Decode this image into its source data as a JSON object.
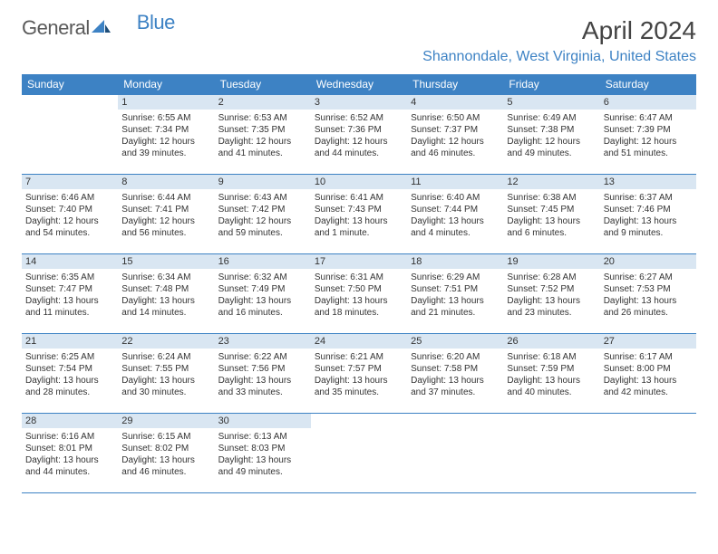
{
  "logo": {
    "general": "General",
    "blue": "Blue"
  },
  "title": "April 2024",
  "location": "Shannondale, West Virginia, United States",
  "colors": {
    "accent": "#3d82c4",
    "day_num_bg": "#d9e6f2",
    "text": "#333333",
    "logo_gray": "#5a5a5a"
  },
  "day_headers": [
    "Sunday",
    "Monday",
    "Tuesday",
    "Wednesday",
    "Thursday",
    "Friday",
    "Saturday"
  ],
  "weeks": [
    [
      null,
      {
        "n": "1",
        "sr": "Sunrise: 6:55 AM",
        "ss": "Sunset: 7:34 PM",
        "d1": "Daylight: 12 hours",
        "d2": "and 39 minutes."
      },
      {
        "n": "2",
        "sr": "Sunrise: 6:53 AM",
        "ss": "Sunset: 7:35 PM",
        "d1": "Daylight: 12 hours",
        "d2": "and 41 minutes."
      },
      {
        "n": "3",
        "sr": "Sunrise: 6:52 AM",
        "ss": "Sunset: 7:36 PM",
        "d1": "Daylight: 12 hours",
        "d2": "and 44 minutes."
      },
      {
        "n": "4",
        "sr": "Sunrise: 6:50 AM",
        "ss": "Sunset: 7:37 PM",
        "d1": "Daylight: 12 hours",
        "d2": "and 46 minutes."
      },
      {
        "n": "5",
        "sr": "Sunrise: 6:49 AM",
        "ss": "Sunset: 7:38 PM",
        "d1": "Daylight: 12 hours",
        "d2": "and 49 minutes."
      },
      {
        "n": "6",
        "sr": "Sunrise: 6:47 AM",
        "ss": "Sunset: 7:39 PM",
        "d1": "Daylight: 12 hours",
        "d2": "and 51 minutes."
      }
    ],
    [
      {
        "n": "7",
        "sr": "Sunrise: 6:46 AM",
        "ss": "Sunset: 7:40 PM",
        "d1": "Daylight: 12 hours",
        "d2": "and 54 minutes."
      },
      {
        "n": "8",
        "sr": "Sunrise: 6:44 AM",
        "ss": "Sunset: 7:41 PM",
        "d1": "Daylight: 12 hours",
        "d2": "and 56 minutes."
      },
      {
        "n": "9",
        "sr": "Sunrise: 6:43 AM",
        "ss": "Sunset: 7:42 PM",
        "d1": "Daylight: 12 hours",
        "d2": "and 59 minutes."
      },
      {
        "n": "10",
        "sr": "Sunrise: 6:41 AM",
        "ss": "Sunset: 7:43 PM",
        "d1": "Daylight: 13 hours",
        "d2": "and 1 minute."
      },
      {
        "n": "11",
        "sr": "Sunrise: 6:40 AM",
        "ss": "Sunset: 7:44 PM",
        "d1": "Daylight: 13 hours",
        "d2": "and 4 minutes."
      },
      {
        "n": "12",
        "sr": "Sunrise: 6:38 AM",
        "ss": "Sunset: 7:45 PM",
        "d1": "Daylight: 13 hours",
        "d2": "and 6 minutes."
      },
      {
        "n": "13",
        "sr": "Sunrise: 6:37 AM",
        "ss": "Sunset: 7:46 PM",
        "d1": "Daylight: 13 hours",
        "d2": "and 9 minutes."
      }
    ],
    [
      {
        "n": "14",
        "sr": "Sunrise: 6:35 AM",
        "ss": "Sunset: 7:47 PM",
        "d1": "Daylight: 13 hours",
        "d2": "and 11 minutes."
      },
      {
        "n": "15",
        "sr": "Sunrise: 6:34 AM",
        "ss": "Sunset: 7:48 PM",
        "d1": "Daylight: 13 hours",
        "d2": "and 14 minutes."
      },
      {
        "n": "16",
        "sr": "Sunrise: 6:32 AM",
        "ss": "Sunset: 7:49 PM",
        "d1": "Daylight: 13 hours",
        "d2": "and 16 minutes."
      },
      {
        "n": "17",
        "sr": "Sunrise: 6:31 AM",
        "ss": "Sunset: 7:50 PM",
        "d1": "Daylight: 13 hours",
        "d2": "and 18 minutes."
      },
      {
        "n": "18",
        "sr": "Sunrise: 6:29 AM",
        "ss": "Sunset: 7:51 PM",
        "d1": "Daylight: 13 hours",
        "d2": "and 21 minutes."
      },
      {
        "n": "19",
        "sr": "Sunrise: 6:28 AM",
        "ss": "Sunset: 7:52 PM",
        "d1": "Daylight: 13 hours",
        "d2": "and 23 minutes."
      },
      {
        "n": "20",
        "sr": "Sunrise: 6:27 AM",
        "ss": "Sunset: 7:53 PM",
        "d1": "Daylight: 13 hours",
        "d2": "and 26 minutes."
      }
    ],
    [
      {
        "n": "21",
        "sr": "Sunrise: 6:25 AM",
        "ss": "Sunset: 7:54 PM",
        "d1": "Daylight: 13 hours",
        "d2": "and 28 minutes."
      },
      {
        "n": "22",
        "sr": "Sunrise: 6:24 AM",
        "ss": "Sunset: 7:55 PM",
        "d1": "Daylight: 13 hours",
        "d2": "and 30 minutes."
      },
      {
        "n": "23",
        "sr": "Sunrise: 6:22 AM",
        "ss": "Sunset: 7:56 PM",
        "d1": "Daylight: 13 hours",
        "d2": "and 33 minutes."
      },
      {
        "n": "24",
        "sr": "Sunrise: 6:21 AM",
        "ss": "Sunset: 7:57 PM",
        "d1": "Daylight: 13 hours",
        "d2": "and 35 minutes."
      },
      {
        "n": "25",
        "sr": "Sunrise: 6:20 AM",
        "ss": "Sunset: 7:58 PM",
        "d1": "Daylight: 13 hours",
        "d2": "and 37 minutes."
      },
      {
        "n": "26",
        "sr": "Sunrise: 6:18 AM",
        "ss": "Sunset: 7:59 PM",
        "d1": "Daylight: 13 hours",
        "d2": "and 40 minutes."
      },
      {
        "n": "27",
        "sr": "Sunrise: 6:17 AM",
        "ss": "Sunset: 8:00 PM",
        "d1": "Daylight: 13 hours",
        "d2": "and 42 minutes."
      }
    ],
    [
      {
        "n": "28",
        "sr": "Sunrise: 6:16 AM",
        "ss": "Sunset: 8:01 PM",
        "d1": "Daylight: 13 hours",
        "d2": "and 44 minutes."
      },
      {
        "n": "29",
        "sr": "Sunrise: 6:15 AM",
        "ss": "Sunset: 8:02 PM",
        "d1": "Daylight: 13 hours",
        "d2": "and 46 minutes."
      },
      {
        "n": "30",
        "sr": "Sunrise: 6:13 AM",
        "ss": "Sunset: 8:03 PM",
        "d1": "Daylight: 13 hours",
        "d2": "and 49 minutes."
      },
      null,
      null,
      null,
      null
    ]
  ]
}
